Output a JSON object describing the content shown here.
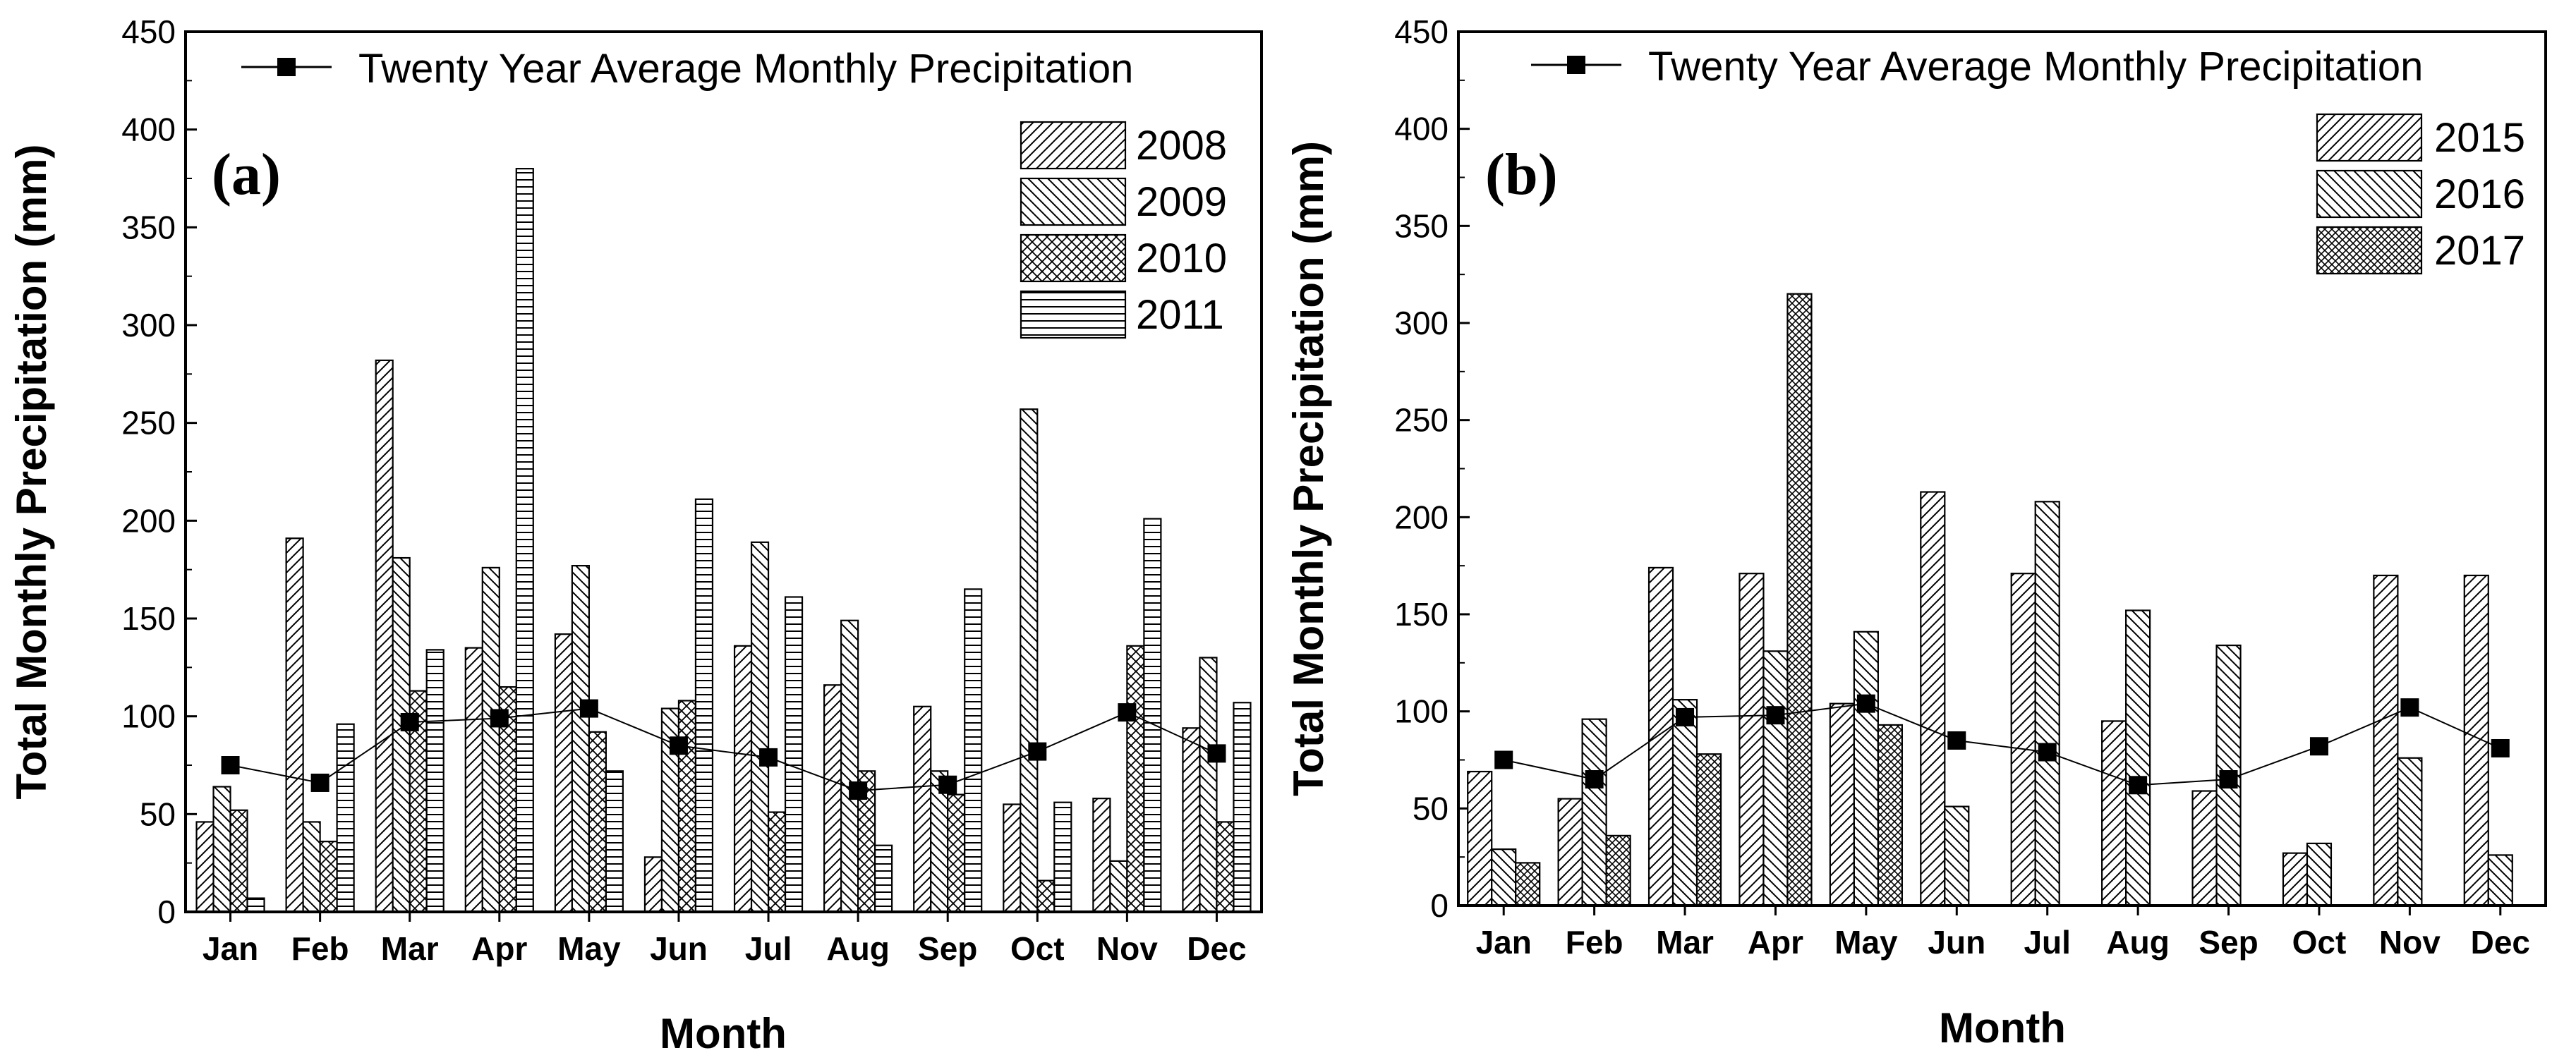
{
  "colors": {
    "ink": "#000000",
    "background": "#ffffff"
  },
  "figure": {
    "xlabel": "Month",
    "ylabel": "Total Monthly Precipitation (mm)",
    "avg_legend": "Twenty Year Average Monthly Precipitation"
  },
  "chart_data": [
    {
      "type": "bar",
      "panel_label": "(a)",
      "title": "",
      "xlabel": "Month",
      "ylabel": "Total Monthly Precipitation (mm)",
      "ylim": [
        0,
        450
      ],
      "yticks": [
        0,
        50,
        100,
        150,
        200,
        250,
        300,
        350,
        400,
        450
      ],
      "categories": [
        "Jan",
        "Feb",
        "Mar",
        "Apr",
        "May",
        "Jun",
        "Jul",
        "Aug",
        "Sep",
        "Oct",
        "Nov",
        "Dec"
      ],
      "series": [
        {
          "name": "2008",
          "pattern": "diag-right",
          "values": [
            46,
            191,
            282,
            135,
            142,
            28,
            136,
            116,
            105,
            55,
            58,
            94
          ]
        },
        {
          "name": "2009",
          "pattern": "diag-left",
          "values": [
            64,
            46,
            181,
            176,
            177,
            104,
            189,
            149,
            72,
            257,
            26,
            130
          ]
        },
        {
          "name": "2010",
          "pattern": "cross",
          "values": [
            52,
            36,
            113,
            115,
            92,
            108,
            51,
            72,
            60,
            16,
            136,
            46
          ]
        },
        {
          "name": "2011",
          "pattern": "horizontal",
          "values": [
            7,
            96,
            134,
            380,
            72,
            211,
            161,
            34,
            165,
            56,
            201,
            107
          ]
        }
      ],
      "line": {
        "name": "Twenty Year Average Monthly Precipitation",
        "values": [
          75,
          66,
          97,
          99,
          104,
          85,
          79,
          62,
          65,
          82,
          102,
          81
        ]
      },
      "legend_position": "top-right"
    },
    {
      "type": "bar",
      "panel_label": "(b)",
      "title": "",
      "xlabel": "Month",
      "ylabel": "Total Monthly Precipitation (mm)",
      "ylim": [
        0,
        450
      ],
      "yticks": [
        0,
        50,
        100,
        150,
        200,
        250,
        300,
        350,
        400,
        450
      ],
      "categories": [
        "Jan",
        "Feb",
        "Mar",
        "Apr",
        "May",
        "Jun",
        "Jul",
        "Aug",
        "Sep",
        "Oct",
        "Nov",
        "Dec"
      ],
      "series": [
        {
          "name": "2015",
          "pattern": "diag-right",
          "values": [
            69,
            55,
            174,
            171,
            104,
            213,
            171,
            95,
            59,
            27,
            170,
            170
          ]
        },
        {
          "name": "2016",
          "pattern": "diag-left",
          "values": [
            29,
            96,
            106,
            131,
            141,
            51,
            208,
            152,
            134,
            32,
            76,
            26
          ]
        },
        {
          "name": "2017",
          "pattern": "crosshatch",
          "values": [
            22,
            36,
            78,
            315,
            93,
            null,
            null,
            null,
            null,
            null,
            null,
            null
          ]
        }
      ],
      "line": {
        "name": "Twenty Year Average Monthly Precipitation",
        "values": [
          75,
          65,
          97,
          98,
          104,
          85,
          79,
          62,
          65,
          82,
          102,
          81
        ]
      },
      "legend_position": "top-right"
    }
  ]
}
